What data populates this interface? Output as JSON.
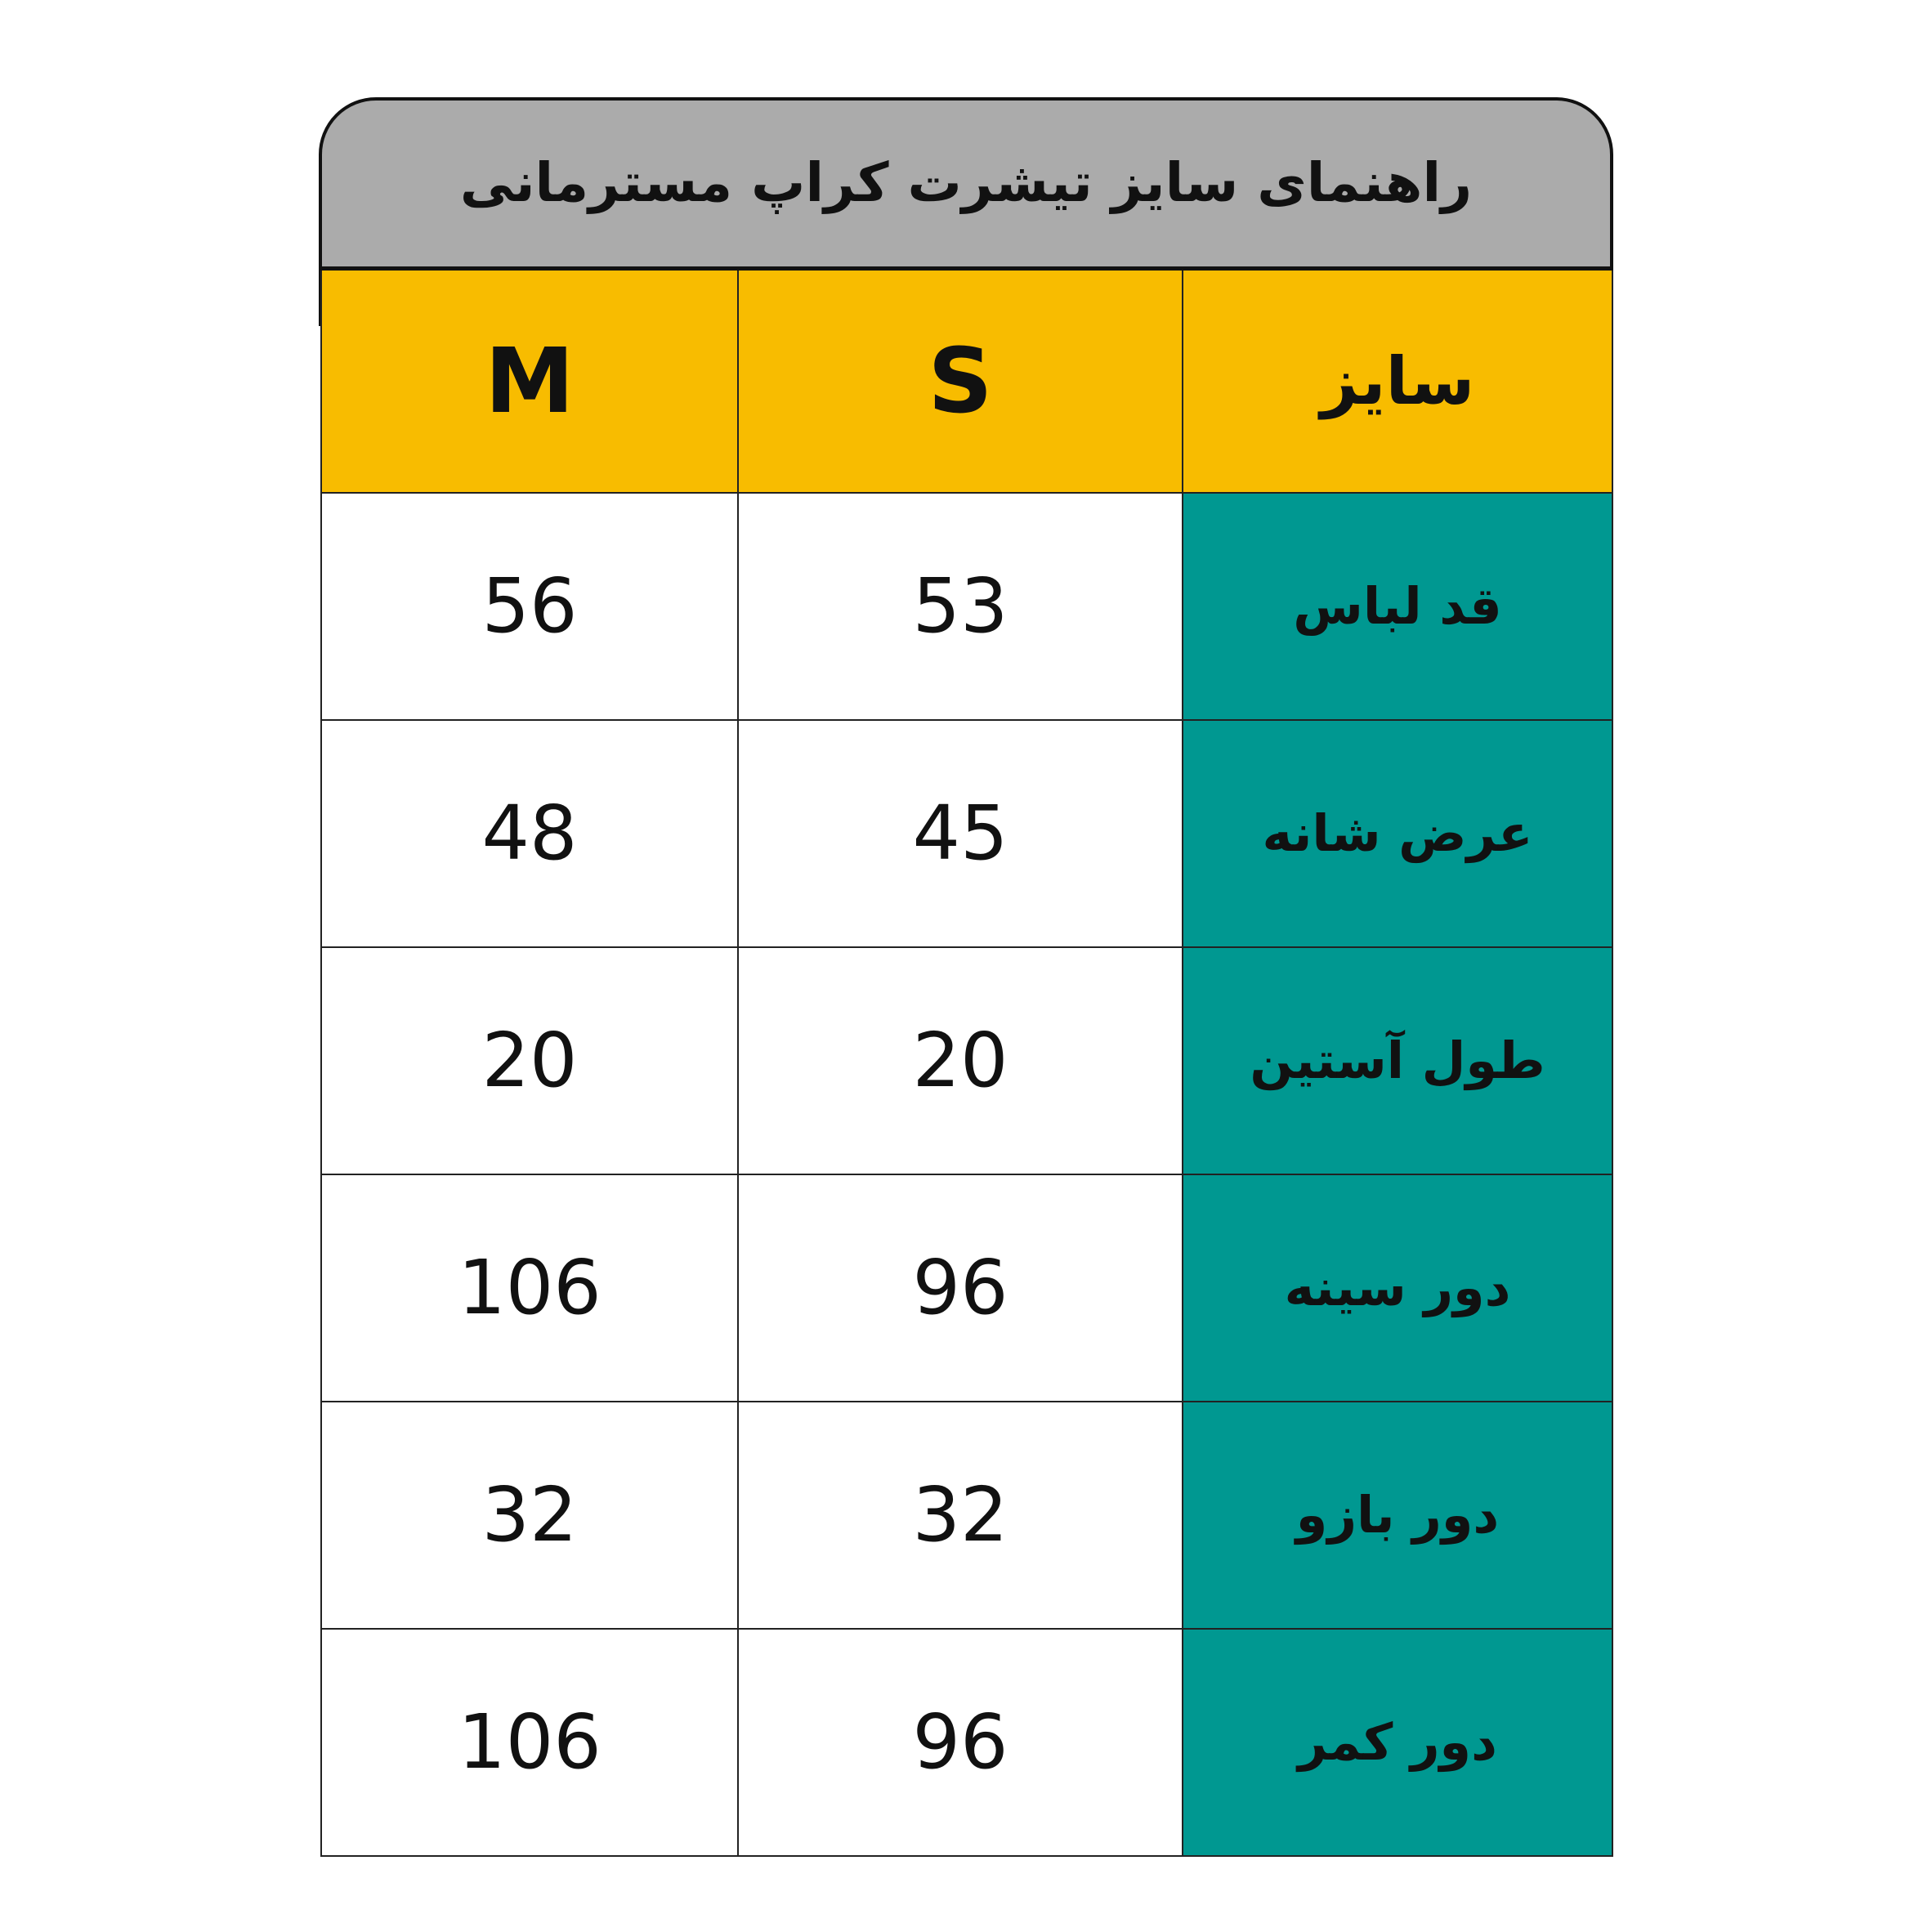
{
  "title": "راهنمای سایز تیشرت کراپ مسترمانی",
  "colors": {
    "title_bg": "#ababab",
    "header_bg": "#f8bc00",
    "label_bg": "#009891"
  },
  "header": {
    "label": "سایز",
    "sizes": [
      "M",
      "S"
    ]
  },
  "rows": [
    {
      "label": "قد لباس",
      "M": "56",
      "S": "53"
    },
    {
      "label": "عرض شانه",
      "M": "48",
      "S": "45"
    },
    {
      "label": "طول آستین",
      "M": "20",
      "S": "20"
    },
    {
      "label": "دور سینه",
      "M": "106",
      "S": "96"
    },
    {
      "label": "دور بازو",
      "M": "32",
      "S": "32"
    },
    {
      "label": "دور کمر",
      "M": "106",
      "S": "96"
    }
  ]
}
